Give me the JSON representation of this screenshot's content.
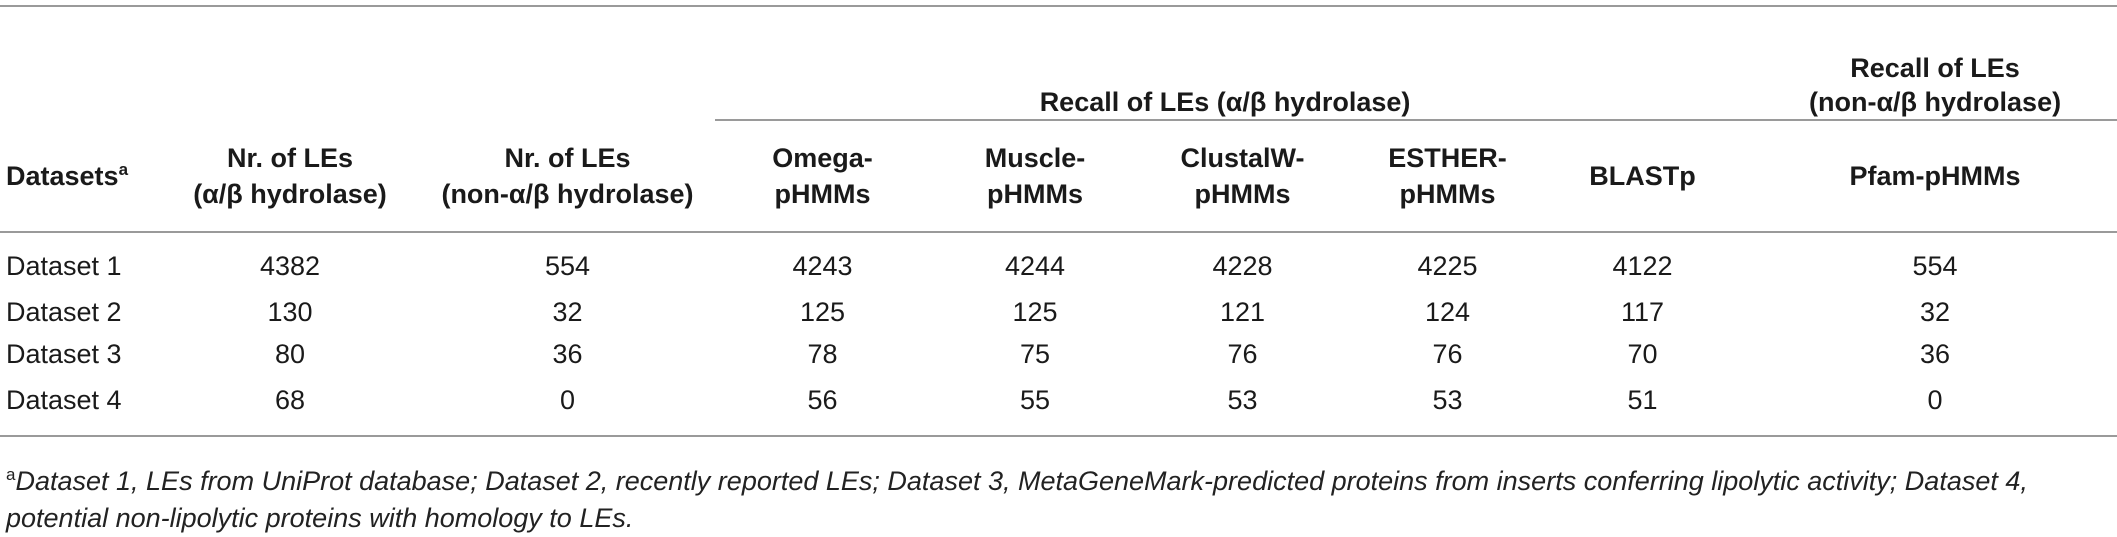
{
  "table": {
    "group_header_1": "Recall of LEs (α/β hydrolase)",
    "group_header_2_line1": "Recall of LEs",
    "group_header_2_line2": "(non-α/β hydrolase)",
    "columns": [
      {
        "line1": "Datasets",
        "sup": "a",
        "line2": ""
      },
      {
        "line1": "Nr. of LEs",
        "line2": "(α/β hydrolase)"
      },
      {
        "line1": "Nr. of LEs",
        "line2": "(non-α/β hydrolase)"
      },
      {
        "line1": "Omega-",
        "line2": "pHMMs"
      },
      {
        "line1": "Muscle-",
        "line2": "pHMMs"
      },
      {
        "line1": "ClustalW-",
        "line2": "pHMMs"
      },
      {
        "line1": "ESTHER-",
        "line2": "pHMMs"
      },
      {
        "line1": "BLASTp",
        "line2": ""
      },
      {
        "line1": "Pfam-pHMMs",
        "line2": ""
      }
    ],
    "rows": [
      [
        "Dataset 1",
        "4382",
        "554",
        "4243",
        "4244",
        "4228",
        "4225",
        "4122",
        "554"
      ],
      [
        "Dataset 2",
        "130",
        "32",
        "125",
        "125",
        "121",
        "124",
        "117",
        "32"
      ],
      [
        "Dataset 3",
        "80",
        "36",
        "78",
        "75",
        "76",
        "76",
        "70",
        "36"
      ],
      [
        "Dataset 4",
        "68",
        "0",
        "56",
        "55",
        "53",
        "53",
        "51",
        "0"
      ]
    ]
  },
  "footnote": {
    "mark": "a",
    "text": "Dataset 1, LEs from UniProt database; Dataset 2, recently reported LEs; Dataset 3, MetaGeneMark-predicted proteins from inserts conferring lipolytic activity; Dataset 4, potential non-lipolytic proteins with homology to LEs."
  }
}
